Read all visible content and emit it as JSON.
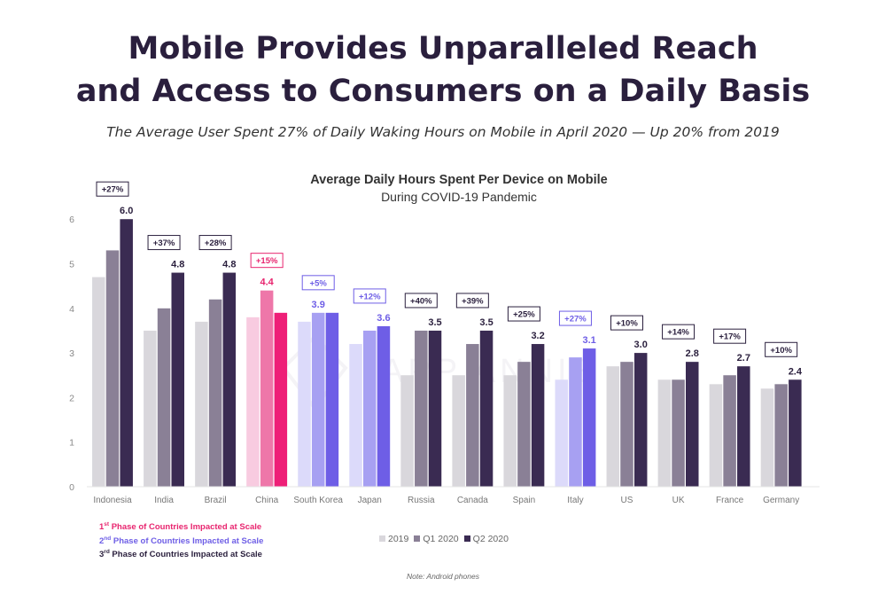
{
  "headline": {
    "line1": "Mobile Provides Unparalleled Reach",
    "line2": "and Access to Consumers on a Daily Basis"
  },
  "subtitle": "The Average User Spent 27% of Daily Waking Hours on Mobile in April 2020 — Up 20% from 2019",
  "note": "Note: Android phones",
  "watermark": "APP ANNIE",
  "phase_legend": [
    {
      "num": "1",
      "suffix": "st",
      "text": " Phase of Countries Impacted at Scale",
      "color": "#e8256f"
    },
    {
      "num": "2",
      "suffix": "nd",
      "text": " Phase of Countries Impacted at Scale",
      "color": "#6e5ee6"
    },
    {
      "num": "3",
      "suffix": "rd",
      "text": " Phase of Countries Impacted at Scale",
      "color": "#2a1f3d"
    }
  ],
  "chart_data": {
    "type": "bar",
    "title": "Average Daily Hours Spent Per Device on Mobile",
    "subtitle": "During COVID-19 Pandemic",
    "xlabel": "",
    "ylabel": "",
    "ylim": [
      0,
      6
    ],
    "yticks": [
      0,
      1,
      2,
      3,
      4,
      5,
      6
    ],
    "grid": false,
    "legend_position": "bottom",
    "categories": [
      "Indonesia",
      "India",
      "Brazil",
      "China",
      "South Korea",
      "Japan",
      "Russia",
      "Canada",
      "Spain",
      "Italy",
      "US",
      "UK",
      "France",
      "Germany"
    ],
    "series": [
      {
        "name": "2019",
        "values": [
          4.7,
          3.5,
          3.7,
          3.8,
          3.7,
          3.2,
          2.5,
          2.5,
          2.5,
          2.4,
          2.7,
          2.4,
          2.3,
          2.2
        ]
      },
      {
        "name": "Q1 2020",
        "values": [
          5.3,
          4.0,
          4.2,
          4.4,
          3.9,
          3.5,
          3.5,
          3.2,
          2.8,
          2.9,
          2.8,
          2.4,
          2.5,
          2.3
        ]
      },
      {
        "name": "Q2 2020",
        "values": [
          6.0,
          4.8,
          4.8,
          3.9,
          3.9,
          3.6,
          3.5,
          3.5,
          3.2,
          3.1,
          3.0,
          2.8,
          2.7,
          2.4
        ]
      }
    ],
    "value_labels": [
      "6.0",
      "4.8",
      "4.8",
      "4.4",
      "3.9",
      "3.6",
      "3.5",
      "3.5",
      "3.2",
      "3.1",
      "3.0",
      "2.8",
      "2.7",
      "2.4"
    ],
    "growth_labels": [
      "+27%",
      "+37%",
      "+28%",
      "+15%",
      "+5%",
      "+12%",
      "+40%",
      "+39%",
      "+25%",
      "+27%",
      "+10%",
      "+14%",
      "+17%",
      "+10%"
    ],
    "label_bar_index": [
      2,
      2,
      2,
      1,
      1,
      2,
      2,
      2,
      2,
      2,
      2,
      2,
      2,
      2
    ],
    "phase": [
      3,
      3,
      3,
      1,
      2,
      2,
      3,
      3,
      3,
      2,
      3,
      3,
      3,
      3
    ],
    "colors": {
      "phase1": [
        "#f8cbe0",
        "#ee77a9",
        "#ee1f77"
      ],
      "phase2": [
        "#dcdafa",
        "#a7a0f2",
        "#6e5ee6"
      ],
      "phase3": [
        "#d9d7dc",
        "#8a8096",
        "#3a2b52"
      ],
      "axis_text": "#888888",
      "phase1_label": "#e8256f",
      "phase2_label": "#6e5ee6"
    }
  }
}
